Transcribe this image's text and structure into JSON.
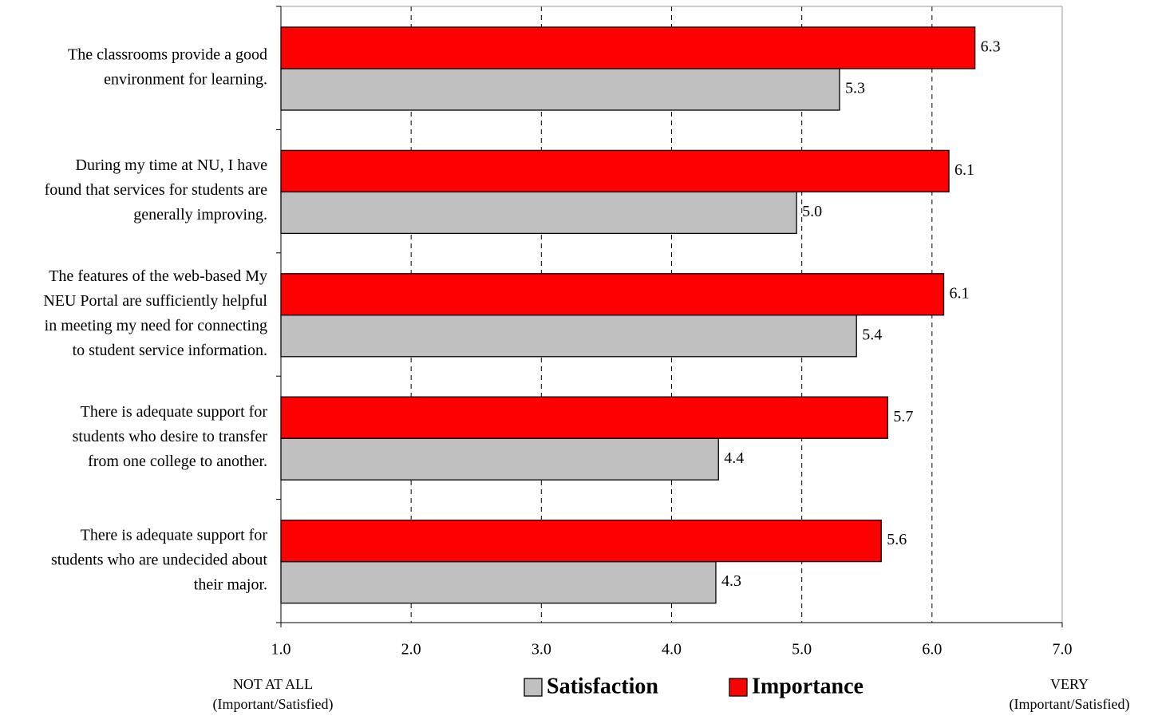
{
  "chart_data": {
    "type": "bar",
    "orientation": "horizontal",
    "categories": [
      [
        "The classrooms provide a good",
        "environment for learning."
      ],
      [
        "During my time at NU, I have",
        "found that services for students are",
        "generally improving."
      ],
      [
        "The features of the web-based My",
        "NEU Portal are sufficiently helpful",
        "in meeting my need for connecting",
        "to student service information."
      ],
      [
        "There is adequate support for",
        "students who desire to transfer",
        "from one college to another."
      ],
      [
        "There is adequate support for",
        "students who are undecided about",
        "their major."
      ]
    ],
    "series": [
      {
        "name": "Satisfaction",
        "color": "#c0c0c0",
        "values": [
          5.29,
          4.96,
          5.42,
          4.36,
          4.34
        ],
        "value_labels": [
          "5.3",
          "5.0",
          "5.4",
          "4.4",
          "4.3"
        ]
      },
      {
        "name": "Importance",
        "color": "#ff0000",
        "values": [
          6.33,
          6.13,
          6.09,
          5.66,
          5.61
        ],
        "value_labels": [
          "6.3",
          "6.1",
          "6.1",
          "5.7",
          "5.6"
        ]
      }
    ],
    "xlim": [
      1,
      7
    ],
    "xticks": [
      {
        "value": 1,
        "label": "1.0"
      },
      {
        "value": 2,
        "label": "2.0"
      },
      {
        "value": 3,
        "label": "3.0"
      },
      {
        "value": 4,
        "label": "4.0"
      },
      {
        "value": 5,
        "label": "5.0"
      },
      {
        "value": 6,
        "label": "6.0"
      },
      {
        "value": 7,
        "label": "7.0"
      }
    ],
    "grid": true,
    "legend": "bottom",
    "annotations": [
      [
        "NOT AT ALL",
        "(Important/Satisfied)"
      ],
      [
        "VERY",
        "(Important/Satisfied)"
      ]
    ]
  }
}
